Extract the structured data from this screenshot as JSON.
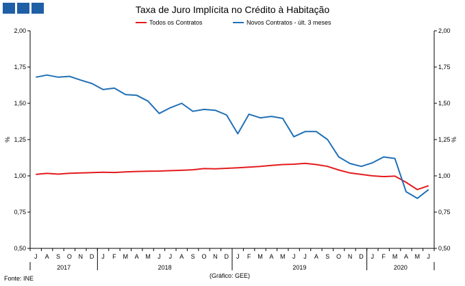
{
  "title": "Taxa de Juro Implícita no Crédito à Habitação",
  "footer": {
    "source": "Fonte: INE",
    "credit": "(Gráfico: GEE)"
  },
  "colors": {
    "todos": "#e41a1c",
    "novos": "#1f6fb5",
    "logo": "#1f5fa6"
  },
  "chart_data": {
    "type": "line",
    "ylabel": "%",
    "ylim": [
      0.5,
      2.0
    ],
    "yticks": [
      "2,00",
      "1,75",
      "1,50",
      "1,25",
      "1,00",
      "0,75",
      "0,50"
    ],
    "ytick_values": [
      2.0,
      1.75,
      1.5,
      1.25,
      1.0,
      0.75,
      0.5
    ],
    "grid": false,
    "legend": "top",
    "x": [
      "J",
      "A",
      "S",
      "O",
      "N",
      "D",
      "J",
      "F",
      "M",
      "A",
      "M",
      "J",
      "J",
      "A",
      "S",
      "O",
      "N",
      "D",
      "J",
      "F",
      "M",
      "A",
      "M",
      "J",
      "J",
      "A",
      "S",
      "O",
      "N",
      "D",
      "J",
      "F",
      "M",
      "A",
      "M",
      "J"
    ],
    "years": [
      {
        "label": "2017",
        "start": 0,
        "end": 5
      },
      {
        "label": "2018",
        "start": 6,
        "end": 17
      },
      {
        "label": "2019",
        "start": 18,
        "end": 29
      },
      {
        "label": "2020",
        "start": 30,
        "end": 35
      }
    ],
    "series": [
      {
        "name": "Todos os Contratos",
        "color": "#e41a1c",
        "values": [
          1.01,
          1.017,
          1.012,
          1.018,
          1.02,
          1.022,
          1.025,
          1.023,
          1.027,
          1.03,
          1.032,
          1.033,
          1.036,
          1.038,
          1.042,
          1.05,
          1.048,
          1.052,
          1.055,
          1.06,
          1.065,
          1.072,
          1.078,
          1.08,
          1.086,
          1.078,
          1.065,
          1.04,
          1.02,
          1.01,
          1.0,
          0.995,
          0.998,
          0.955,
          0.905,
          0.932
        ]
      },
      {
        "name": "Novos Contratos - últ. 3 meses",
        "color": "#1f6fb5",
        "values": [
          1.68,
          1.695,
          1.68,
          1.686,
          1.66,
          1.637,
          1.595,
          1.605,
          1.56,
          1.555,
          1.515,
          1.43,
          1.47,
          1.5,
          1.445,
          1.458,
          1.452,
          1.42,
          1.29,
          1.425,
          1.4,
          1.41,
          1.396,
          1.27,
          1.305,
          1.305,
          1.25,
          1.13,
          1.085,
          1.065,
          1.09,
          1.13,
          1.12,
          0.89,
          0.845,
          0.905
        ]
      }
    ]
  }
}
